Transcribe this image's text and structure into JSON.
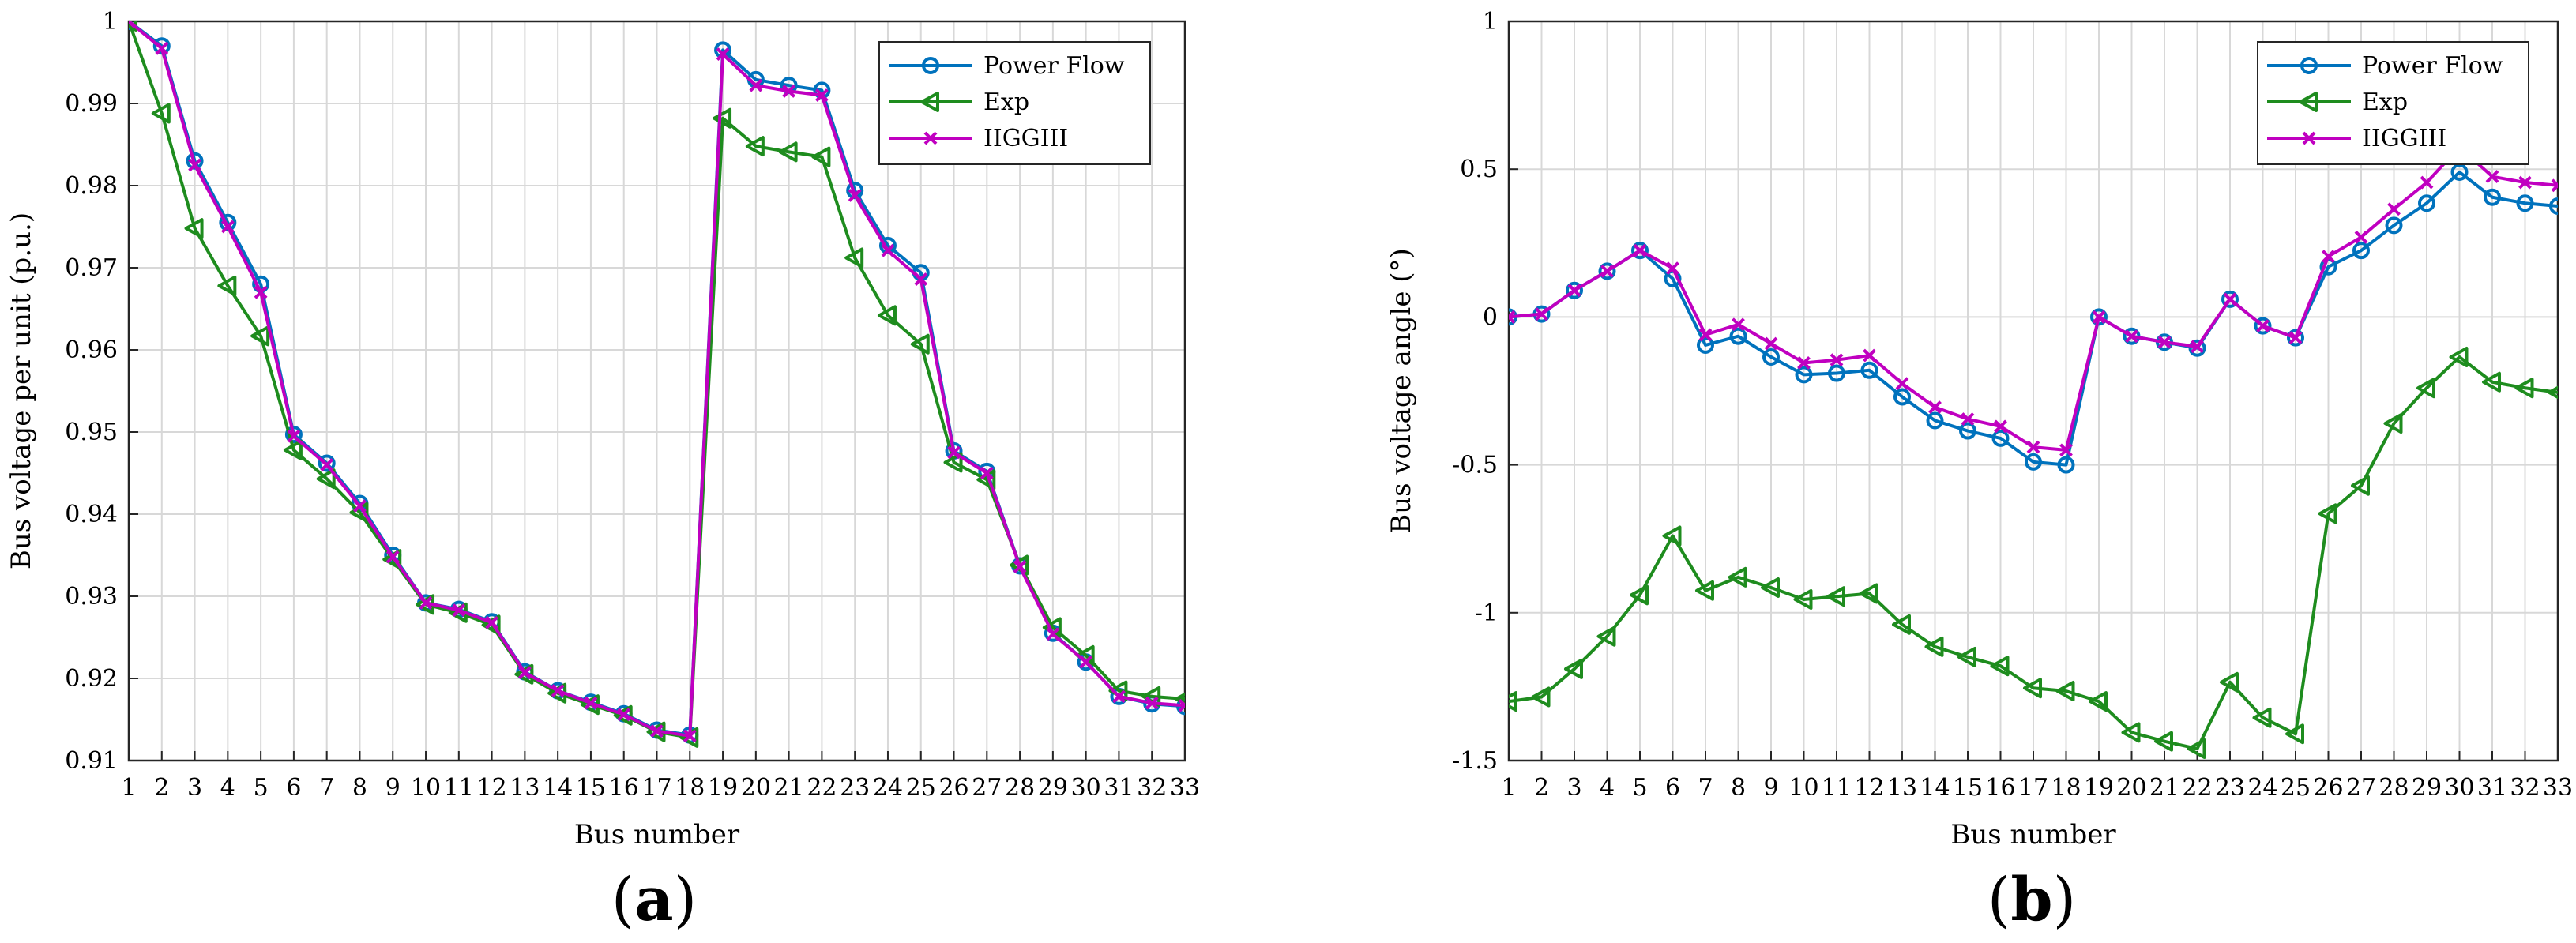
{
  "figure": {
    "panels": [
      "a",
      "b"
    ]
  },
  "colors": {
    "power_flow": "#0072BD",
    "exp": "#1E8C1E",
    "iiggiii": "#C000C0",
    "grid": "#d8d8d8"
  },
  "chart_data": [
    {
      "id": "a",
      "label": "a",
      "type": "line",
      "xlabel": "Bus number",
      "ylabel": "Bus voltage per unit (p.u.)",
      "xlim": [
        1,
        33
      ],
      "ylim": [
        0.91,
        1
      ],
      "x": [
        1,
        2,
        3,
        4,
        5,
        6,
        7,
        8,
        9,
        10,
        11,
        12,
        13,
        14,
        15,
        16,
        17,
        18,
        19,
        20,
        21,
        22,
        23,
        24,
        25,
        26,
        27,
        28,
        29,
        30,
        31,
        32,
        33
      ],
      "xticks": [
        "1",
        "2",
        "3",
        "4",
        "5",
        "6",
        "7",
        "8",
        "9",
        "10",
        "11",
        "12",
        "13",
        "14",
        "15",
        "16",
        "17",
        "18",
        "19",
        "20",
        "21",
        "22",
        "23",
        "24",
        "25",
        "26",
        "27",
        "28",
        "29",
        "30",
        "31",
        "32",
        "33"
      ],
      "yticks": [
        "0.91",
        "0.92",
        "0.93",
        "0.94",
        "0.95",
        "0.96",
        "0.97",
        "0.98",
        "0.99",
        "1"
      ],
      "yticks_values": [
        0.91,
        0.92,
        0.93,
        0.94,
        0.95,
        0.96,
        0.97,
        0.98,
        0.99,
        1.0
      ],
      "grid": true,
      "legend_position": "top-right",
      "series": [
        {
          "name": "Power Flow",
          "color_key": "power_flow",
          "marker": "circle",
          "values": [
            1.0,
            0.997,
            0.983,
            0.9755,
            0.968,
            0.9497,
            0.9462,
            0.9413,
            0.935,
            0.9292,
            0.9284,
            0.9269,
            0.9208,
            0.9185,
            0.9171,
            0.9157,
            0.9137,
            0.9131,
            0.9965,
            0.9929,
            0.9922,
            0.9916,
            0.9794,
            0.9727,
            0.9694,
            0.9477,
            0.9452,
            0.9337,
            0.9255,
            0.922,
            0.9178,
            0.9169,
            0.9166
          ]
        },
        {
          "name": "Exp",
          "color_key": "exp",
          "marker": "triangle-left",
          "values": [
            1.0,
            0.9888,
            0.9748,
            0.9678,
            0.9617,
            0.9478,
            0.9443,
            0.9402,
            0.9345,
            0.929,
            0.928,
            0.9265,
            0.9205,
            0.9182,
            0.9168,
            0.9155,
            0.9135,
            0.9128,
            0.9882,
            0.9848,
            0.9841,
            0.9835,
            0.9712,
            0.9642,
            0.9607,
            0.9463,
            0.9442,
            0.9338,
            0.9262,
            0.9228,
            0.9185,
            0.9178,
            0.9175
          ]
        },
        {
          "name": "IIGGIII",
          "color_key": "iiggiii",
          "marker": "x",
          "values": [
            1.0,
            0.9967,
            0.9825,
            0.975,
            0.967,
            0.9495,
            0.946,
            0.941,
            0.9348,
            0.9292,
            0.9283,
            0.9268,
            0.9207,
            0.9185,
            0.917,
            0.9156,
            0.9136,
            0.913,
            0.996,
            0.9922,
            0.9915,
            0.991,
            0.9788,
            0.9721,
            0.9686,
            0.9475,
            0.945,
            0.9336,
            0.9254,
            0.922,
            0.9178,
            0.917,
            0.9167
          ]
        }
      ]
    },
    {
      "id": "b",
      "label": "b",
      "type": "line",
      "xlabel": "Bus number",
      "ylabel": "Bus voltage angle (°)",
      "xlim": [
        1,
        33
      ],
      "ylim": [
        -1.5,
        1
      ],
      "x": [
        1,
        2,
        3,
        4,
        5,
        6,
        7,
        8,
        9,
        10,
        11,
        12,
        13,
        14,
        15,
        16,
        17,
        18,
        19,
        20,
        21,
        22,
        23,
        24,
        25,
        26,
        27,
        28,
        29,
        30,
        31,
        32,
        33
      ],
      "xticks": [
        "1",
        "2",
        "3",
        "4",
        "5",
        "6",
        "7",
        "8",
        "9",
        "10",
        "11",
        "12",
        "13",
        "14",
        "15",
        "16",
        "17",
        "18",
        "19",
        "20",
        "21",
        "22",
        "23",
        "24",
        "25",
        "26",
        "27",
        "28",
        "29",
        "30",
        "31",
        "32",
        "33"
      ],
      "yticks": [
        "-1.5",
        "-1",
        "-0.5",
        "0",
        "0.5",
        "1"
      ],
      "yticks_values": [
        -1.5,
        -1.0,
        -0.5,
        0.0,
        0.5,
        1.0
      ],
      "grid": true,
      "legend_position": "top-right",
      "series": [
        {
          "name": "Power Flow",
          "color_key": "power_flow",
          "marker": "circle",
          "values": [
            0.0,
            0.01,
            0.09,
            0.155,
            0.225,
            0.13,
            -0.095,
            -0.065,
            -0.135,
            -0.195,
            -0.19,
            -0.18,
            -0.27,
            -0.35,
            -0.385,
            -0.41,
            -0.49,
            -0.5,
            0.0,
            -0.065,
            -0.085,
            -0.105,
            0.06,
            -0.03,
            -0.07,
            0.17,
            0.225,
            0.31,
            0.385,
            0.49,
            0.405,
            0.385,
            0.375
          ]
        },
        {
          "name": "Exp",
          "color_key": "exp",
          "marker": "triangle-left",
          "values": [
            -1.3,
            -1.285,
            -1.19,
            -1.08,
            -0.94,
            -0.74,
            -0.925,
            -0.88,
            -0.915,
            -0.955,
            -0.945,
            -0.935,
            -1.04,
            -1.115,
            -1.15,
            -1.18,
            -1.255,
            -1.265,
            -1.3,
            -1.405,
            -1.435,
            -1.46,
            -1.235,
            -1.355,
            -1.41,
            -0.665,
            -0.57,
            -0.36,
            -0.24,
            -0.135,
            -0.22,
            -0.24,
            -0.255
          ]
        },
        {
          "name": "IIGGIII",
          "color_key": "iiggiii",
          "marker": "x",
          "values": [
            0.0,
            0.01,
            0.09,
            0.155,
            0.225,
            0.165,
            -0.06,
            -0.025,
            -0.09,
            -0.155,
            -0.145,
            -0.13,
            -0.225,
            -0.305,
            -0.345,
            -0.37,
            -0.44,
            -0.45,
            0.0,
            -0.065,
            -0.085,
            -0.1,
            0.06,
            -0.03,
            -0.07,
            0.205,
            0.27,
            0.365,
            0.455,
            0.575,
            0.475,
            0.455,
            0.445
          ]
        }
      ]
    }
  ]
}
